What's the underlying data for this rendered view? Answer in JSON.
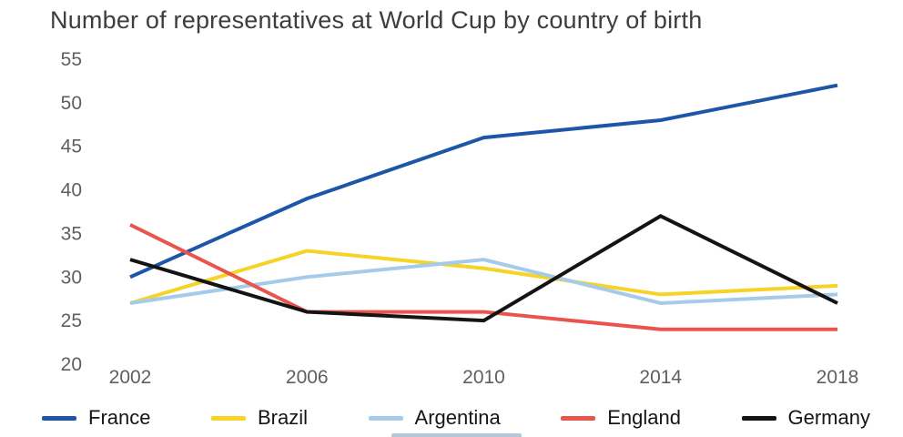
{
  "chart_data": {
    "type": "line",
    "title": "Number of representatives at World Cup by country of birth",
    "categories": [
      "2002",
      "2006",
      "2010",
      "2014",
      "2018"
    ],
    "series": [
      {
        "name": "France",
        "color": "#1d56a6",
        "values": [
          30,
          39,
          46,
          48,
          52
        ]
      },
      {
        "name": "Brazil",
        "color": "#f5d327",
        "values": [
          27,
          33,
          31,
          28,
          29
        ]
      },
      {
        "name": "Argentina",
        "color": "#a6cbea",
        "values": [
          27,
          30,
          32,
          27,
          28
        ]
      },
      {
        "name": "England",
        "color": "#e9544d",
        "values": [
          36,
          26,
          26,
          24,
          24
        ]
      },
      {
        "name": "Germany",
        "color": "#141414",
        "values": [
          32,
          26,
          25,
          37,
          27
        ]
      }
    ],
    "yticks": [
      20,
      25,
      30,
      35,
      40,
      45,
      50,
      55
    ],
    "ylim": [
      20,
      55
    ],
    "xlabel": "",
    "ylabel": "",
    "grid": false,
    "legend_position": "bottom"
  }
}
